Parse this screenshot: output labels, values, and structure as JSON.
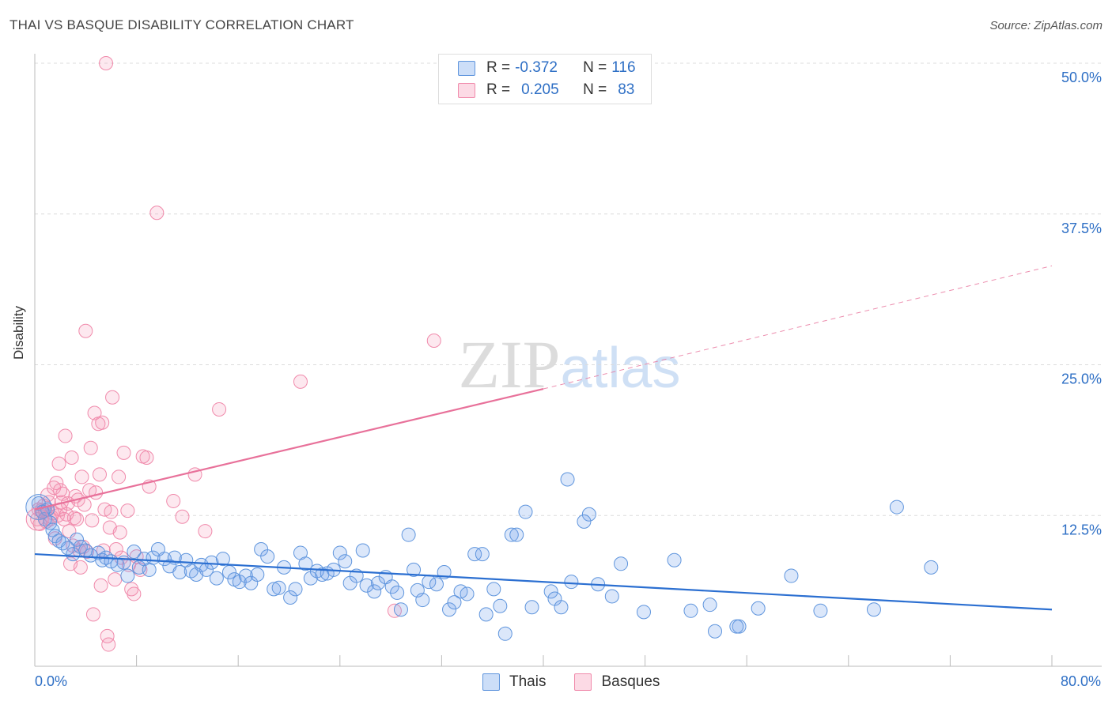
{
  "title": "THAI VS BASQUE DISABILITY CORRELATION CHART",
  "source": "Source: ZipAtlas.com",
  "colors": {
    "thai_fill": "rgba(110,160,235,0.25)",
    "thai_stroke": "#5f95dd",
    "thai_line": "#2b6fd1",
    "basque_fill": "rgba(245,150,180,0.22)",
    "basque_stroke": "#f08aab",
    "basque_line": "#e8719a",
    "axis_text": "#2e6fc5",
    "grid": "#dcdcdc"
  },
  "legend_top": {
    "thai": {
      "r_label": "R =",
      "r_value": "-0.372",
      "n_label": "N =",
      "n_value": "116"
    },
    "basque": {
      "r_label": "R =",
      "r_value": "0.205",
      "n_label": "N =",
      "n_value": "83"
    }
  },
  "chart_data": {
    "type": "scatter",
    "title": "THAI VS BASQUE DISABILITY CORRELATION CHART",
    "ylabel": "Disability",
    "xlabel": "",
    "xlim": [
      0,
      80
    ],
    "ylim": [
      0,
      50
    ],
    "x_tick_labels": [
      "0.0%",
      "80.0%"
    ],
    "y_ticks": [
      12.5,
      25.0,
      37.5,
      50.0
    ],
    "y_tick_labels": [
      "12.5%",
      "25.0%",
      "37.5%",
      "50.0%"
    ],
    "grid": true,
    "legend": "bottom-center",
    "series": [
      {
        "name": "Thais",
        "trend": {
          "x0": 0,
          "y0": 9.3,
          "x1": 80,
          "y1": 4.7
        },
        "points": [
          [
            0.3,
            13.5
          ],
          [
            0.6,
            12.8
          ],
          [
            0.8,
            12.2
          ],
          [
            1.0,
            13.0
          ],
          [
            1.2,
            11.9
          ],
          [
            1.4,
            11.3
          ],
          [
            1.6,
            10.8
          ],
          [
            1.9,
            10.4
          ],
          [
            2.2,
            10.2
          ],
          [
            2.6,
            9.8
          ],
          [
            3.0,
            9.3
          ],
          [
            3.3,
            10.5
          ],
          [
            3.6,
            9.9
          ],
          [
            4.0,
            9.6
          ],
          [
            4.4,
            9.2
          ],
          [
            5.0,
            9.4
          ],
          [
            5.3,
            8.8
          ],
          [
            5.6,
            9.0
          ],
          [
            6.0,
            8.7
          ],
          [
            6.5,
            8.4
          ],
          [
            7.0,
            8.6
          ],
          [
            7.3,
            7.5
          ],
          [
            7.8,
            9.5
          ],
          [
            8.2,
            8.2
          ],
          [
            8.6,
            8.9
          ],
          [
            9.0,
            8.0
          ],
          [
            9.3,
            9.0
          ],
          [
            9.7,
            9.7
          ],
          [
            10.2,
            8.9
          ],
          [
            10.6,
            8.3
          ],
          [
            11.0,
            9.0
          ],
          [
            11.4,
            7.8
          ],
          [
            11.9,
            8.8
          ],
          [
            12.3,
            7.9
          ],
          [
            12.7,
            7.6
          ],
          [
            13.1,
            8.4
          ],
          [
            13.5,
            8.0
          ],
          [
            13.9,
            8.6
          ],
          [
            14.3,
            7.3
          ],
          [
            14.8,
            8.9
          ],
          [
            15.3,
            7.8
          ],
          [
            15.7,
            7.2
          ],
          [
            16.1,
            7.0
          ],
          [
            16.6,
            7.5
          ],
          [
            17.0,
            6.9
          ],
          [
            17.5,
            7.6
          ],
          [
            17.8,
            9.7
          ],
          [
            18.3,
            9.1
          ],
          [
            18.8,
            6.4
          ],
          [
            19.2,
            6.5
          ],
          [
            19.6,
            8.2
          ],
          [
            20.1,
            5.7
          ],
          [
            20.5,
            6.4
          ],
          [
            20.9,
            9.4
          ],
          [
            21.3,
            8.5
          ],
          [
            21.7,
            7.3
          ],
          [
            22.2,
            7.9
          ],
          [
            22.6,
            7.6
          ],
          [
            23.0,
            7.7
          ],
          [
            23.5,
            8.0
          ],
          [
            24.0,
            9.4
          ],
          [
            24.4,
            8.7
          ],
          [
            24.8,
            6.9
          ],
          [
            25.3,
            7.5
          ],
          [
            25.8,
            9.6
          ],
          [
            26.1,
            6.7
          ],
          [
            26.7,
            6.2
          ],
          [
            27.0,
            6.9
          ],
          [
            27.6,
            7.4
          ],
          [
            28.1,
            6.6
          ],
          [
            28.5,
            6.1
          ],
          [
            28.8,
            4.7
          ],
          [
            29.4,
            10.9
          ],
          [
            29.8,
            8.0
          ],
          [
            30.1,
            6.3
          ],
          [
            30.5,
            5.5
          ],
          [
            31.0,
            7.0
          ],
          [
            31.6,
            6.8
          ],
          [
            32.2,
            7.8
          ],
          [
            32.6,
            4.7
          ],
          [
            33.0,
            5.3
          ],
          [
            33.5,
            6.2
          ],
          [
            34.0,
            6.0
          ],
          [
            34.6,
            9.3
          ],
          [
            35.2,
            9.3
          ],
          [
            35.5,
            4.3
          ],
          [
            36.1,
            6.4
          ],
          [
            36.6,
            5.0
          ],
          [
            37.0,
            2.7
          ],
          [
            37.5,
            10.9
          ],
          [
            37.9,
            10.9
          ],
          [
            38.6,
            12.8
          ],
          [
            39.1,
            4.9
          ],
          [
            40.6,
            6.2
          ],
          [
            40.9,
            5.6
          ],
          [
            41.4,
            4.9
          ],
          [
            41.9,
            15.5
          ],
          [
            42.2,
            7.0
          ],
          [
            43.6,
            12.6
          ],
          [
            44.3,
            6.8
          ],
          [
            45.4,
            5.8
          ],
          [
            46.1,
            8.5
          ],
          [
            43.2,
            12.0
          ],
          [
            47.9,
            4.5
          ],
          [
            50.3,
            8.8
          ],
          [
            51.6,
            4.6
          ],
          [
            53.1,
            5.1
          ],
          [
            55.4,
            3.3
          ],
          [
            55.2,
            3.3
          ],
          [
            56.9,
            4.8
          ],
          [
            59.5,
            7.5
          ],
          [
            61.8,
            4.6
          ],
          [
            66.0,
            4.7
          ],
          [
            67.8,
            13.2
          ],
          [
            70.5,
            8.2
          ],
          [
            53.5,
            2.9
          ]
        ]
      },
      {
        "name": "Basques",
        "trend": {
          "x0": 0,
          "y0": 13.0,
          "x1": 40,
          "y1": 23.0,
          "dashed_to": {
            "x": 80,
            "y": 33.2
          }
        },
        "points": [
          [
            0.2,
            12.2
          ],
          [
            0.4,
            11.8
          ],
          [
            0.5,
            12.9
          ],
          [
            0.7,
            13.3
          ],
          [
            0.9,
            12.0
          ],
          [
            1.1,
            13.6
          ],
          [
            1.3,
            12.4
          ],
          [
            1.5,
            14.8
          ],
          [
            1.7,
            15.2
          ],
          [
            1.8,
            12.5
          ],
          [
            1.9,
            16.8
          ],
          [
            2.1,
            13.6
          ],
          [
            2.2,
            14.3
          ],
          [
            2.4,
            19.1
          ],
          [
            2.5,
            12.6
          ],
          [
            2.7,
            11.2
          ],
          [
            2.9,
            17.3
          ],
          [
            3.1,
            12.3
          ],
          [
            3.2,
            14.1
          ],
          [
            3.4,
            13.8
          ],
          [
            3.5,
            9.6
          ],
          [
            3.6,
            8.2
          ],
          [
            3.8,
            9.9
          ],
          [
            4.0,
            27.8
          ],
          [
            4.3,
            14.6
          ],
          [
            4.4,
            18.1
          ],
          [
            4.6,
            4.3
          ],
          [
            4.7,
            21.0
          ],
          [
            5.0,
            20.1
          ],
          [
            5.1,
            15.9
          ],
          [
            5.2,
            6.7
          ],
          [
            5.4,
            9.6
          ],
          [
            5.5,
            13.0
          ],
          [
            5.7,
            2.5
          ],
          [
            5.8,
            1.8
          ],
          [
            5.9,
            11.5
          ],
          [
            6.0,
            12.8
          ],
          [
            6.1,
            22.3
          ],
          [
            6.3,
            7.2
          ],
          [
            6.6,
            15.7
          ],
          [
            6.8,
            9.0
          ],
          [
            7.0,
            17.7
          ],
          [
            7.3,
            12.9
          ],
          [
            7.4,
            8.4
          ],
          [
            7.8,
            6.0
          ],
          [
            8.0,
            9.1
          ],
          [
            8.3,
            8.0
          ],
          [
            8.8,
            17.3
          ],
          [
            8.5,
            17.4
          ],
          [
            9.0,
            14.9
          ],
          [
            9.6,
            37.6
          ],
          [
            10.9,
            13.7
          ],
          [
            11.6,
            12.4
          ],
          [
            12.6,
            15.9
          ],
          [
            13.4,
            11.2
          ],
          [
            14.5,
            21.3
          ],
          [
            5.6,
            50.0
          ],
          [
            20.9,
            23.6
          ],
          [
            31.4,
            27.0
          ],
          [
            0.3,
            13.0
          ],
          [
            0.6,
            12.8
          ],
          [
            1.0,
            14.2
          ],
          [
            1.2,
            12.2
          ],
          [
            1.6,
            10.6
          ],
          [
            2.0,
            14.6
          ],
          [
            2.3,
            12.2
          ],
          [
            2.6,
            13.5
          ],
          [
            2.8,
            8.5
          ],
          [
            3.0,
            10.0
          ],
          [
            3.3,
            12.2
          ],
          [
            3.7,
            15.7
          ],
          [
            4.1,
            9.5
          ],
          [
            4.5,
            12.1
          ],
          [
            4.8,
            14.4
          ],
          [
            5.3,
            20.2
          ],
          [
            6.4,
            9.7
          ],
          [
            6.7,
            11.1
          ],
          [
            7.6,
            6.4
          ],
          [
            28.3,
            4.6
          ],
          [
            3.9,
            13.4
          ],
          [
            2.0,
            13.0
          ],
          [
            1.4,
            12.7
          ],
          [
            0.8,
            12.9
          ]
        ]
      }
    ]
  },
  "legend_bottom": {
    "thai": "Thais",
    "basque": "Basques"
  },
  "watermark": "ZIPatlas"
}
